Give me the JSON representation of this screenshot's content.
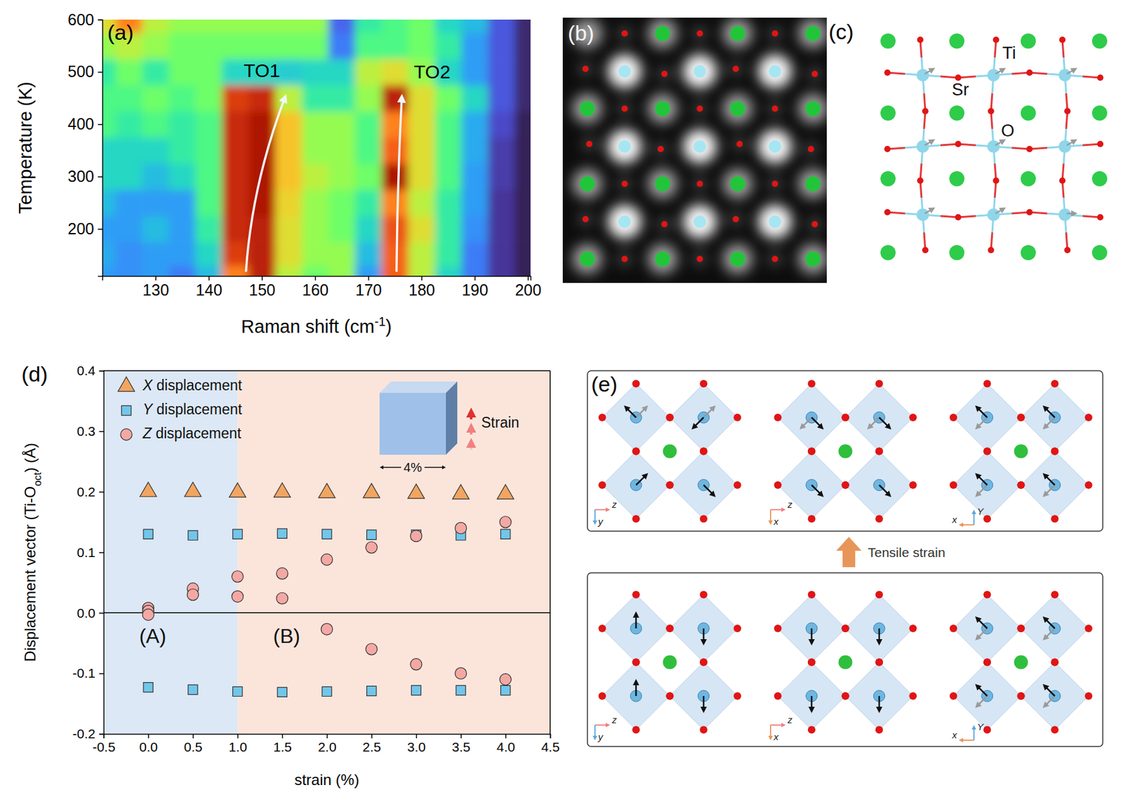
{
  "chart_data": [
    {
      "type": "heatmap",
      "title": "(a)",
      "x_label": [
        "Raman shift (cm",
        "-1",
        ")"
      ],
      "y_label": "Temperature (K)",
      "x": [
        120,
        125,
        130,
        135,
        140,
        145,
        150,
        155,
        160,
        165,
        170,
        175,
        180,
        185,
        190,
        195,
        200
      ],
      "y": [
        110,
        150,
        200,
        250,
        300,
        350,
        400,
        450,
        500,
        550,
        600
      ],
      "values": [
        [
          0.2,
          0.18,
          0.2,
          0.15,
          0.25,
          0.75,
          0.9,
          0.55,
          0.45,
          0.5,
          0.2,
          0.8,
          0.55,
          0.3,
          0.15,
          0.05,
          0.02
        ],
        [
          0.22,
          0.18,
          0.2,
          0.2,
          0.3,
          0.85,
          0.9,
          0.6,
          0.5,
          0.5,
          0.25,
          0.8,
          0.55,
          0.35,
          0.15,
          0.05,
          0.02
        ],
        [
          0.2,
          0.2,
          0.25,
          0.2,
          0.35,
          0.88,
          0.9,
          0.6,
          0.5,
          0.45,
          0.3,
          0.82,
          0.6,
          0.35,
          0.18,
          0.05,
          0.02
        ],
        [
          0.25,
          0.2,
          0.2,
          0.2,
          0.4,
          0.88,
          0.92,
          0.62,
          0.5,
          0.45,
          0.35,
          0.75,
          0.55,
          0.35,
          0.2,
          0.05,
          0.02
        ],
        [
          0.3,
          0.3,
          0.25,
          0.3,
          0.4,
          0.88,
          0.92,
          0.65,
          0.55,
          0.5,
          0.45,
          0.92,
          0.6,
          0.4,
          0.2,
          0.06,
          0.02
        ],
        [
          0.3,
          0.3,
          0.3,
          0.35,
          0.4,
          0.88,
          0.92,
          0.65,
          0.5,
          0.5,
          0.4,
          0.8,
          0.6,
          0.4,
          0.22,
          0.06,
          0.02
        ],
        [
          0.4,
          0.35,
          0.4,
          0.35,
          0.4,
          0.88,
          0.92,
          0.65,
          0.5,
          0.5,
          0.4,
          0.75,
          0.6,
          0.4,
          0.22,
          0.08,
          0.02
        ],
        [
          0.4,
          0.4,
          0.45,
          0.4,
          0.45,
          0.85,
          0.88,
          0.55,
          0.35,
          0.35,
          0.5,
          0.9,
          0.6,
          0.45,
          0.3,
          0.1,
          0.03
        ],
        [
          0.35,
          0.45,
          0.35,
          0.45,
          0.45,
          0.3,
          0.3,
          0.28,
          0.3,
          0.3,
          0.55,
          0.6,
          0.5,
          0.3,
          0.2,
          0.1,
          0.03
        ],
        [
          0.5,
          0.55,
          0.5,
          0.45,
          0.45,
          0.45,
          0.45,
          0.45,
          0.45,
          0.15,
          0.4,
          0.4,
          0.45,
          0.35,
          0.2,
          0.1,
          0.03
        ],
        [
          0.6,
          0.75,
          0.55,
          0.5,
          0.5,
          0.5,
          0.5,
          0.5,
          0.5,
          0.12,
          0.35,
          0.4,
          0.45,
          0.3,
          0.25,
          0.1,
          0.03
        ]
      ],
      "xlim": [
        120,
        200.5
      ],
      "ylim": [
        110,
        600
      ],
      "xticks": [
        130,
        140,
        150,
        160,
        170,
        180,
        190,
        200
      ],
      "yticks": [
        200,
        300,
        400,
        500,
        600
      ],
      "annotations": [
        {
          "text": "TO1",
          "x": 150,
          "y": 500,
          "arrow_from": [
            147,
            118
          ],
          "arrow_to": [
            154.4,
            453
          ]
        },
        {
          "text": "TO2",
          "x": 182,
          "y": 497,
          "arrow_from": [
            175.3,
            118
          ],
          "arrow_to": [
            176.3,
            453
          ]
        }
      ]
    },
    {
      "type": "scatter",
      "title": "(d)",
      "x_label": "strain (%)",
      "y_label": [
        "Displacement vector (Ti-O",
        "oct",
        ") (Å)"
      ],
      "xlim": [
        -0.5,
        4.5
      ],
      "ylim": [
        -0.2,
        0.4
      ],
      "xticks": [
        -0.5,
        {
          "value": 0,
          "label": "0.0"
        },
        0.5,
        {
          "value": 1,
          "label": "1.0"
        },
        1.5,
        {
          "value": 2,
          "label": "2.0"
        },
        2.5,
        {
          "value": 3,
          "label": "3.0"
        },
        3.5,
        {
          "value": 4,
          "label": "4.0"
        },
        4.5
      ],
      "yticks": [
        -0.2,
        -0.1,
        {
          "value": 0,
          "label": "0.0"
        },
        0.1,
        0.2,
        0.3,
        0.4
      ],
      "legend": "upper left",
      "zero_line": 0,
      "regions": [
        {
          "text": "(A)",
          "from": -0.5,
          "to": 1.0,
          "color": "#dce8f6"
        },
        {
          "text": "(B)",
          "from": 1.0,
          "to": 4.5,
          "color": "#fbe5db"
        }
      ],
      "inset": {
        "text": "Strain",
        "width_label": "4%"
      },
      "series": [
        {
          "name": "X displacement",
          "color": "#f2a561",
          "marker": "triangle",
          "x": [
            0,
            0.5,
            1,
            1.5,
            2,
            2.5,
            3,
            3.5,
            4
          ],
          "values": [
            0.2,
            0.2,
            0.199,
            0.199,
            0.198,
            0.198,
            0.197,
            0.196,
            0.196
          ]
        },
        {
          "name": "Y displacement",
          "color": "#72c6ea",
          "marker": "square",
          "x": [
            0,
            0,
            0.5,
            0.5,
            1,
            1,
            1.5,
            1.5,
            2,
            2,
            2.5,
            2.5,
            3,
            3,
            3.5,
            3.5,
            4,
            4
          ],
          "values": [
            0.13,
            -0.123,
            0.128,
            -0.127,
            0.13,
            -0.13,
            0.131,
            -0.131,
            0.13,
            -0.13,
            0.129,
            -0.129,
            0.129,
            -0.128,
            0.128,
            -0.128,
            0.13,
            -0.128
          ]
        },
        {
          "name": "Z displacement",
          "color": "#f4a8a4",
          "marker": "circle",
          "x": [
            0,
            0,
            0,
            0.5,
            0.5,
            1,
            1,
            1.5,
            1.5,
            2,
            2,
            2.5,
            2.5,
            3,
            3,
            3.5,
            3.5,
            4,
            4
          ],
          "values": [
            0.008,
            0.003,
            -0.003,
            0.04,
            0.03,
            0.06,
            0.027,
            0.065,
            0.024,
            0.088,
            -0.027,
            0.108,
            -0.06,
            0.127,
            -0.085,
            0.14,
            -0.1,
            0.15,
            -0.11
          ]
        }
      ]
    }
  ],
  "panels": {
    "b": {
      "label": "(b)"
    },
    "c": {
      "label": "(c)",
      "atom_labels": [
        "Ti",
        "Sr",
        "O"
      ]
    },
    "e": {
      "label": "(e)",
      "arrow_label": "Tensile strain",
      "axes": [
        [
          "z",
          "y"
        ],
        [
          "z",
          "x"
        ],
        [
          "x",
          "Y"
        ]
      ]
    }
  }
}
